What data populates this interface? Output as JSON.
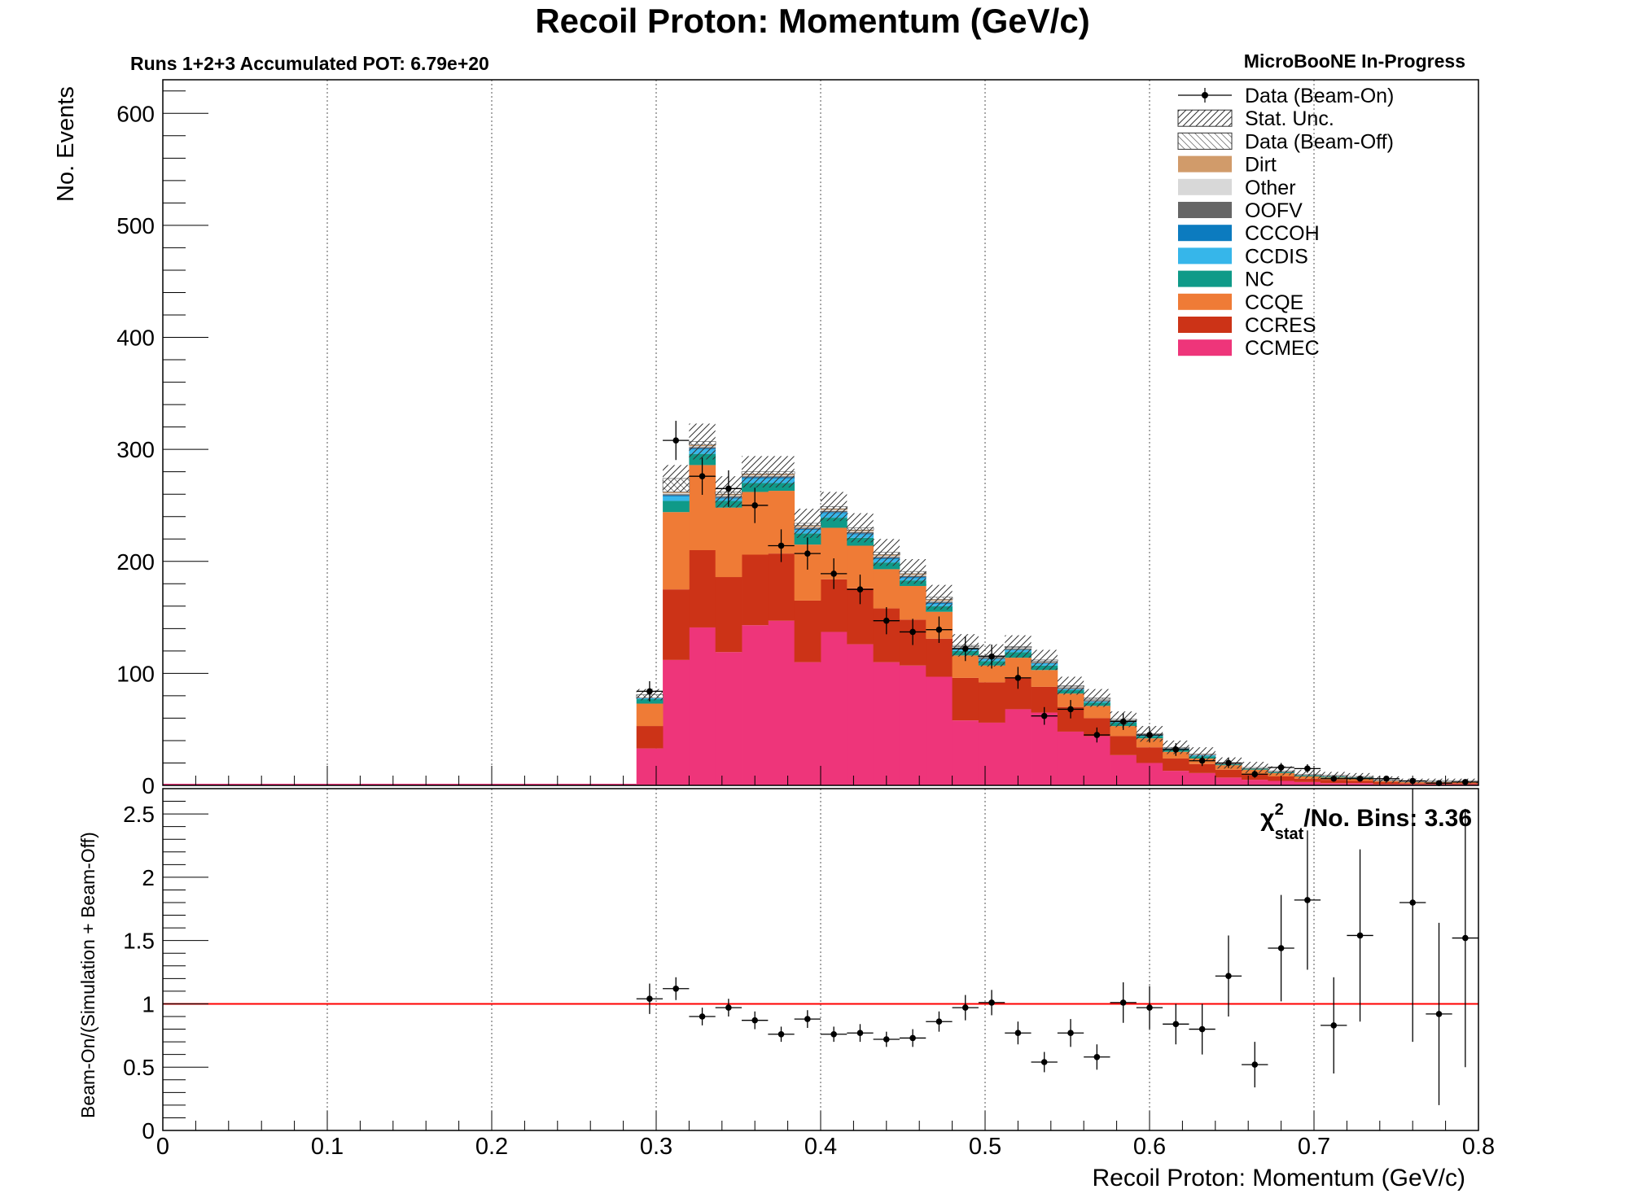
{
  "header": {
    "title": "Recoil Proton: Momentum (GeV/c)",
    "runs_label": "Runs 1+2+3 Accumulated POT: 6.79e+20",
    "experiment_label": "MicroBooNE In-Progress"
  },
  "chart_data": [
    {
      "type": "bar",
      "stacked": true,
      "xlabel": "",
      "ylabel": "No. Events",
      "xlim": [
        0,
        0.8
      ],
      "ylim": [
        0,
        630
      ],
      "x_grid": true,
      "y_ticks": [
        "0",
        "100",
        "200",
        "300",
        "400",
        "500",
        "600"
      ],
      "legend_position": "top-right",
      "legend": [
        {
          "label": "Data (Beam-On)",
          "kind": "marker",
          "color": "#000000"
        },
        {
          "label": "Stat. Unc.",
          "kind": "hatch",
          "color": "#333333"
        },
        {
          "label": "Data (Beam-Off)",
          "kind": "hatch-light",
          "color": "#555555"
        },
        {
          "label": "Dirt",
          "kind": "fill",
          "color": "#d19b6a"
        },
        {
          "label": "Other",
          "kind": "fill",
          "color": "#d8d8d8"
        },
        {
          "label": "OOFV",
          "kind": "fill",
          "color": "#666666"
        },
        {
          "label": "CCCOH",
          "kind": "fill",
          "color": "#0c7bbf"
        },
        {
          "label": "CCDIS",
          "kind": "fill",
          "color": "#36b6ea"
        },
        {
          "label": "NC",
          "kind": "fill",
          "color": "#0f9a88"
        },
        {
          "label": "CCQE",
          "kind": "fill",
          "color": "#ef7b36"
        },
        {
          "label": "CCRES",
          "kind": "fill",
          "color": "#cc3317"
        },
        {
          "label": "CCMEC",
          "kind": "fill",
          "color": "#ee357a"
        }
      ],
      "bin_edges": [
        0.288,
        0.304,
        0.32,
        0.336,
        0.352,
        0.368,
        0.384,
        0.4,
        0.416,
        0.432,
        0.448,
        0.464,
        0.48,
        0.496,
        0.512,
        0.528,
        0.544,
        0.56,
        0.576,
        0.592,
        0.608,
        0.624,
        0.64,
        0.656,
        0.672,
        0.688,
        0.704,
        0.72,
        0.736,
        0.752,
        0.768,
        0.784,
        0.8
      ],
      "stack": {
        "CCMEC": [
          33,
          112,
          141,
          119,
          143,
          147,
          110,
          137,
          126,
          110,
          107,
          97,
          58,
          56,
          68,
          65,
          48,
          44,
          27,
          20,
          13,
          11,
          7,
          5,
          4,
          3,
          2,
          2,
          1,
          1,
          1,
          1
        ],
        "CCRES": [
          20,
          63,
          69,
          67,
          63,
          60,
          55,
          47,
          50,
          48,
          41,
          34,
          38,
          36,
          28,
          23,
          22,
          16,
          17,
          14,
          11,
          8,
          7,
          5,
          4,
          3,
          3,
          2,
          2,
          1,
          1,
          1
        ],
        "CCQE": [
          20,
          69,
          76,
          62,
          56,
          56,
          50,
          46,
          38,
          35,
          30,
          24,
          20,
          15,
          18,
          15,
          12,
          11,
          9,
          8,
          6,
          5,
          4,
          4,
          3,
          2,
          2,
          2,
          1,
          1,
          1,
          1
        ],
        "NC": [
          4,
          10,
          10,
          6,
          8,
          7,
          10,
          9,
          7,
          6,
          5,
          5,
          4,
          4,
          5,
          4,
          3,
          3,
          3,
          2,
          2,
          2,
          1,
          1,
          1,
          1,
          1,
          1,
          0,
          0,
          0,
          0
        ],
        "CCDIS": [
          1,
          4,
          4,
          2,
          4,
          4,
          3,
          4,
          3,
          3,
          2,
          2,
          2,
          2,
          2,
          2,
          1,
          1,
          1,
          1,
          1,
          1,
          0,
          0,
          0,
          0,
          0,
          0,
          0,
          0,
          0,
          0
        ],
        "CCCOH": [
          0,
          1,
          1,
          1,
          1,
          1,
          1,
          1,
          1,
          1,
          1,
          1,
          0,
          0,
          0,
          0,
          0,
          0,
          0,
          0,
          0,
          0,
          0,
          0,
          0,
          0,
          0,
          0,
          0,
          0,
          0,
          0
        ],
        "OOFV": [
          0,
          1,
          1,
          1,
          1,
          1,
          1,
          1,
          1,
          1,
          1,
          1,
          1,
          1,
          1,
          1,
          1,
          1,
          1,
          0,
          0,
          0,
          0,
          0,
          0,
          0,
          0,
          0,
          0,
          0,
          0,
          0
        ],
        "Other": [
          0,
          1,
          1,
          1,
          1,
          1,
          1,
          1,
          1,
          1,
          1,
          1,
          1,
          1,
          1,
          1,
          1,
          1,
          0,
          0,
          0,
          0,
          0,
          0,
          0,
          0,
          0,
          0,
          0,
          0,
          0,
          0
        ],
        "Dirt": [
          0,
          1,
          1,
          1,
          1,
          1,
          1,
          1,
          1,
          1,
          1,
          1,
          0,
          0,
          0,
          0,
          0,
          0,
          0,
          0,
          0,
          0,
          0,
          0,
          0,
          0,
          0,
          0,
          0,
          0,
          0,
          0
        ],
        "Beam-Off": [
          3,
          12,
          3,
          2,
          2,
          2,
          2,
          2,
          2,
          2,
          2,
          2,
          1,
          1,
          1,
          1,
          1,
          1,
          1,
          1,
          1,
          1,
          1,
          1,
          1,
          1,
          1,
          1,
          1,
          1,
          1,
          1
        ]
      },
      "stat_unc": [
        5,
        12,
        16,
        14,
        14,
        14,
        13,
        13,
        13,
        12,
        11,
        11,
        10,
        10,
        10,
        9,
        8,
        8,
        7,
        7,
        6,
        6,
        5,
        5,
        4,
        4,
        3,
        3,
        3,
        2,
        2,
        2
      ],
      "data": {
        "x": [
          0.296,
          0.312,
          0.328,
          0.344,
          0.36,
          0.376,
          0.392,
          0.408,
          0.424,
          0.44,
          0.456,
          0.472,
          0.488,
          0.504,
          0.52,
          0.536,
          0.552,
          0.568,
          0.584,
          0.6,
          0.616,
          0.632,
          0.648,
          0.664,
          0.68,
          0.696,
          0.712,
          0.728,
          0.744,
          0.76,
          0.776,
          0.792
        ],
        "y": [
          84,
          308,
          276,
          265,
          250,
          214,
          207,
          189,
          175,
          147,
          137,
          139,
          122,
          115,
          96,
          62,
          68,
          45,
          57,
          45,
          32,
          22,
          20,
          10,
          16,
          15,
          6,
          6,
          6,
          4,
          2,
          3
        ],
        "yerr": [
          9,
          17.5,
          16.6,
          16.3,
          15.8,
          14.6,
          14.4,
          13.7,
          13.2,
          12.1,
          11.7,
          11.8,
          11,
          10.7,
          9.8,
          7.9,
          8.2,
          6.7,
          7.5,
          6.7,
          5.7,
          4.7,
          4.5,
          3.2,
          4,
          3.9,
          2.4,
          2.4,
          2.4,
          2,
          1.4,
          1.7
        ]
      }
    },
    {
      "type": "scatter",
      "xlabel": "Recoil Proton: Momentum (GeV/c)",
      "ylabel": "Beam-On/(Simulation + Beam-Off)",
      "xlim": [
        0,
        0.8
      ],
      "ylim": [
        0,
        2.7
      ],
      "x_ticks": [
        "0",
        "0.1",
        "0.2",
        "0.3",
        "0.4",
        "0.5",
        "0.6",
        "0.7",
        "0.8"
      ],
      "y_ticks": [
        "0",
        "0.5",
        "1",
        "1.5",
        "2",
        "2.5"
      ],
      "reference_line": {
        "y": 1,
        "color": "#ff0000"
      },
      "chi2_label": {
        "symbol": "χ",
        "sup": "2",
        "sub": "stat",
        "text": "/No. Bins: 3.36"
      },
      "points": {
        "x": [
          0.296,
          0.312,
          0.328,
          0.344,
          0.36,
          0.376,
          0.392,
          0.408,
          0.424,
          0.44,
          0.456,
          0.472,
          0.488,
          0.504,
          0.52,
          0.536,
          0.552,
          0.568,
          0.584,
          0.6,
          0.616,
          0.632,
          0.648,
          0.664,
          0.68,
          0.696,
          0.712,
          0.728,
          0.744,
          0.76,
          0.776,
          0.792
        ],
        "y": [
          1.04,
          1.12,
          0.9,
          0.97,
          0.87,
          0.76,
          0.88,
          0.76,
          0.77,
          0.72,
          0.73,
          0.86,
          0.97,
          1.01,
          0.77,
          0.54,
          0.77,
          0.58,
          1.01,
          0.97,
          0.84,
          0.8,
          1.22,
          0.52,
          1.44,
          1.82,
          0.83,
          1.54,
          null,
          1.8,
          0.92,
          1.52
        ],
        "yerr": [
          0.12,
          0.09,
          0.07,
          0.07,
          0.07,
          0.06,
          0.07,
          0.06,
          0.07,
          0.06,
          0.07,
          0.08,
          0.1,
          0.1,
          0.09,
          0.08,
          0.11,
          0.1,
          0.16,
          0.17,
          0.16,
          0.2,
          0.32,
          0.18,
          0.42,
          0.55,
          0.38,
          0.68,
          null,
          1.1,
          0.72,
          1.02
        ]
      }
    }
  ]
}
